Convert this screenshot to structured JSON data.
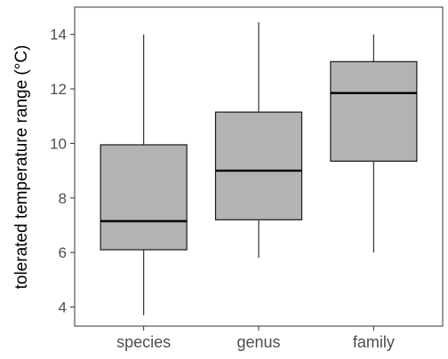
{
  "chart_data": {
    "type": "box",
    "ylabel": "tolerated temperature range (°C)",
    "xlabel": "",
    "ylim": [
      3.3,
      15.0
    ],
    "yticks": [
      4,
      6,
      8,
      10,
      12,
      14
    ],
    "categories": [
      "species",
      "genus",
      "family"
    ],
    "boxes": [
      {
        "category": "species",
        "whisker_low": 3.7,
        "q1": 6.1,
        "median": 7.15,
        "q3": 9.95,
        "whisker_high": 14.0
      },
      {
        "category": "genus",
        "whisker_low": 5.8,
        "q1": 7.2,
        "median": 9.0,
        "q3": 11.15,
        "whisker_high": 14.45
      },
      {
        "category": "family",
        "whisker_low": 6.0,
        "q1": 9.35,
        "median": 11.85,
        "q3": 13.0,
        "whisker_high": 14.0
      }
    ],
    "grid": false,
    "colors": {
      "box_fill": "#b3b3b3",
      "box_stroke": "#1a1a1a",
      "median": "#000000",
      "whisker": "#333333",
      "axis": "#333333",
      "tick_label": "#4d4d4d",
      "axis_title": "#000000"
    }
  }
}
